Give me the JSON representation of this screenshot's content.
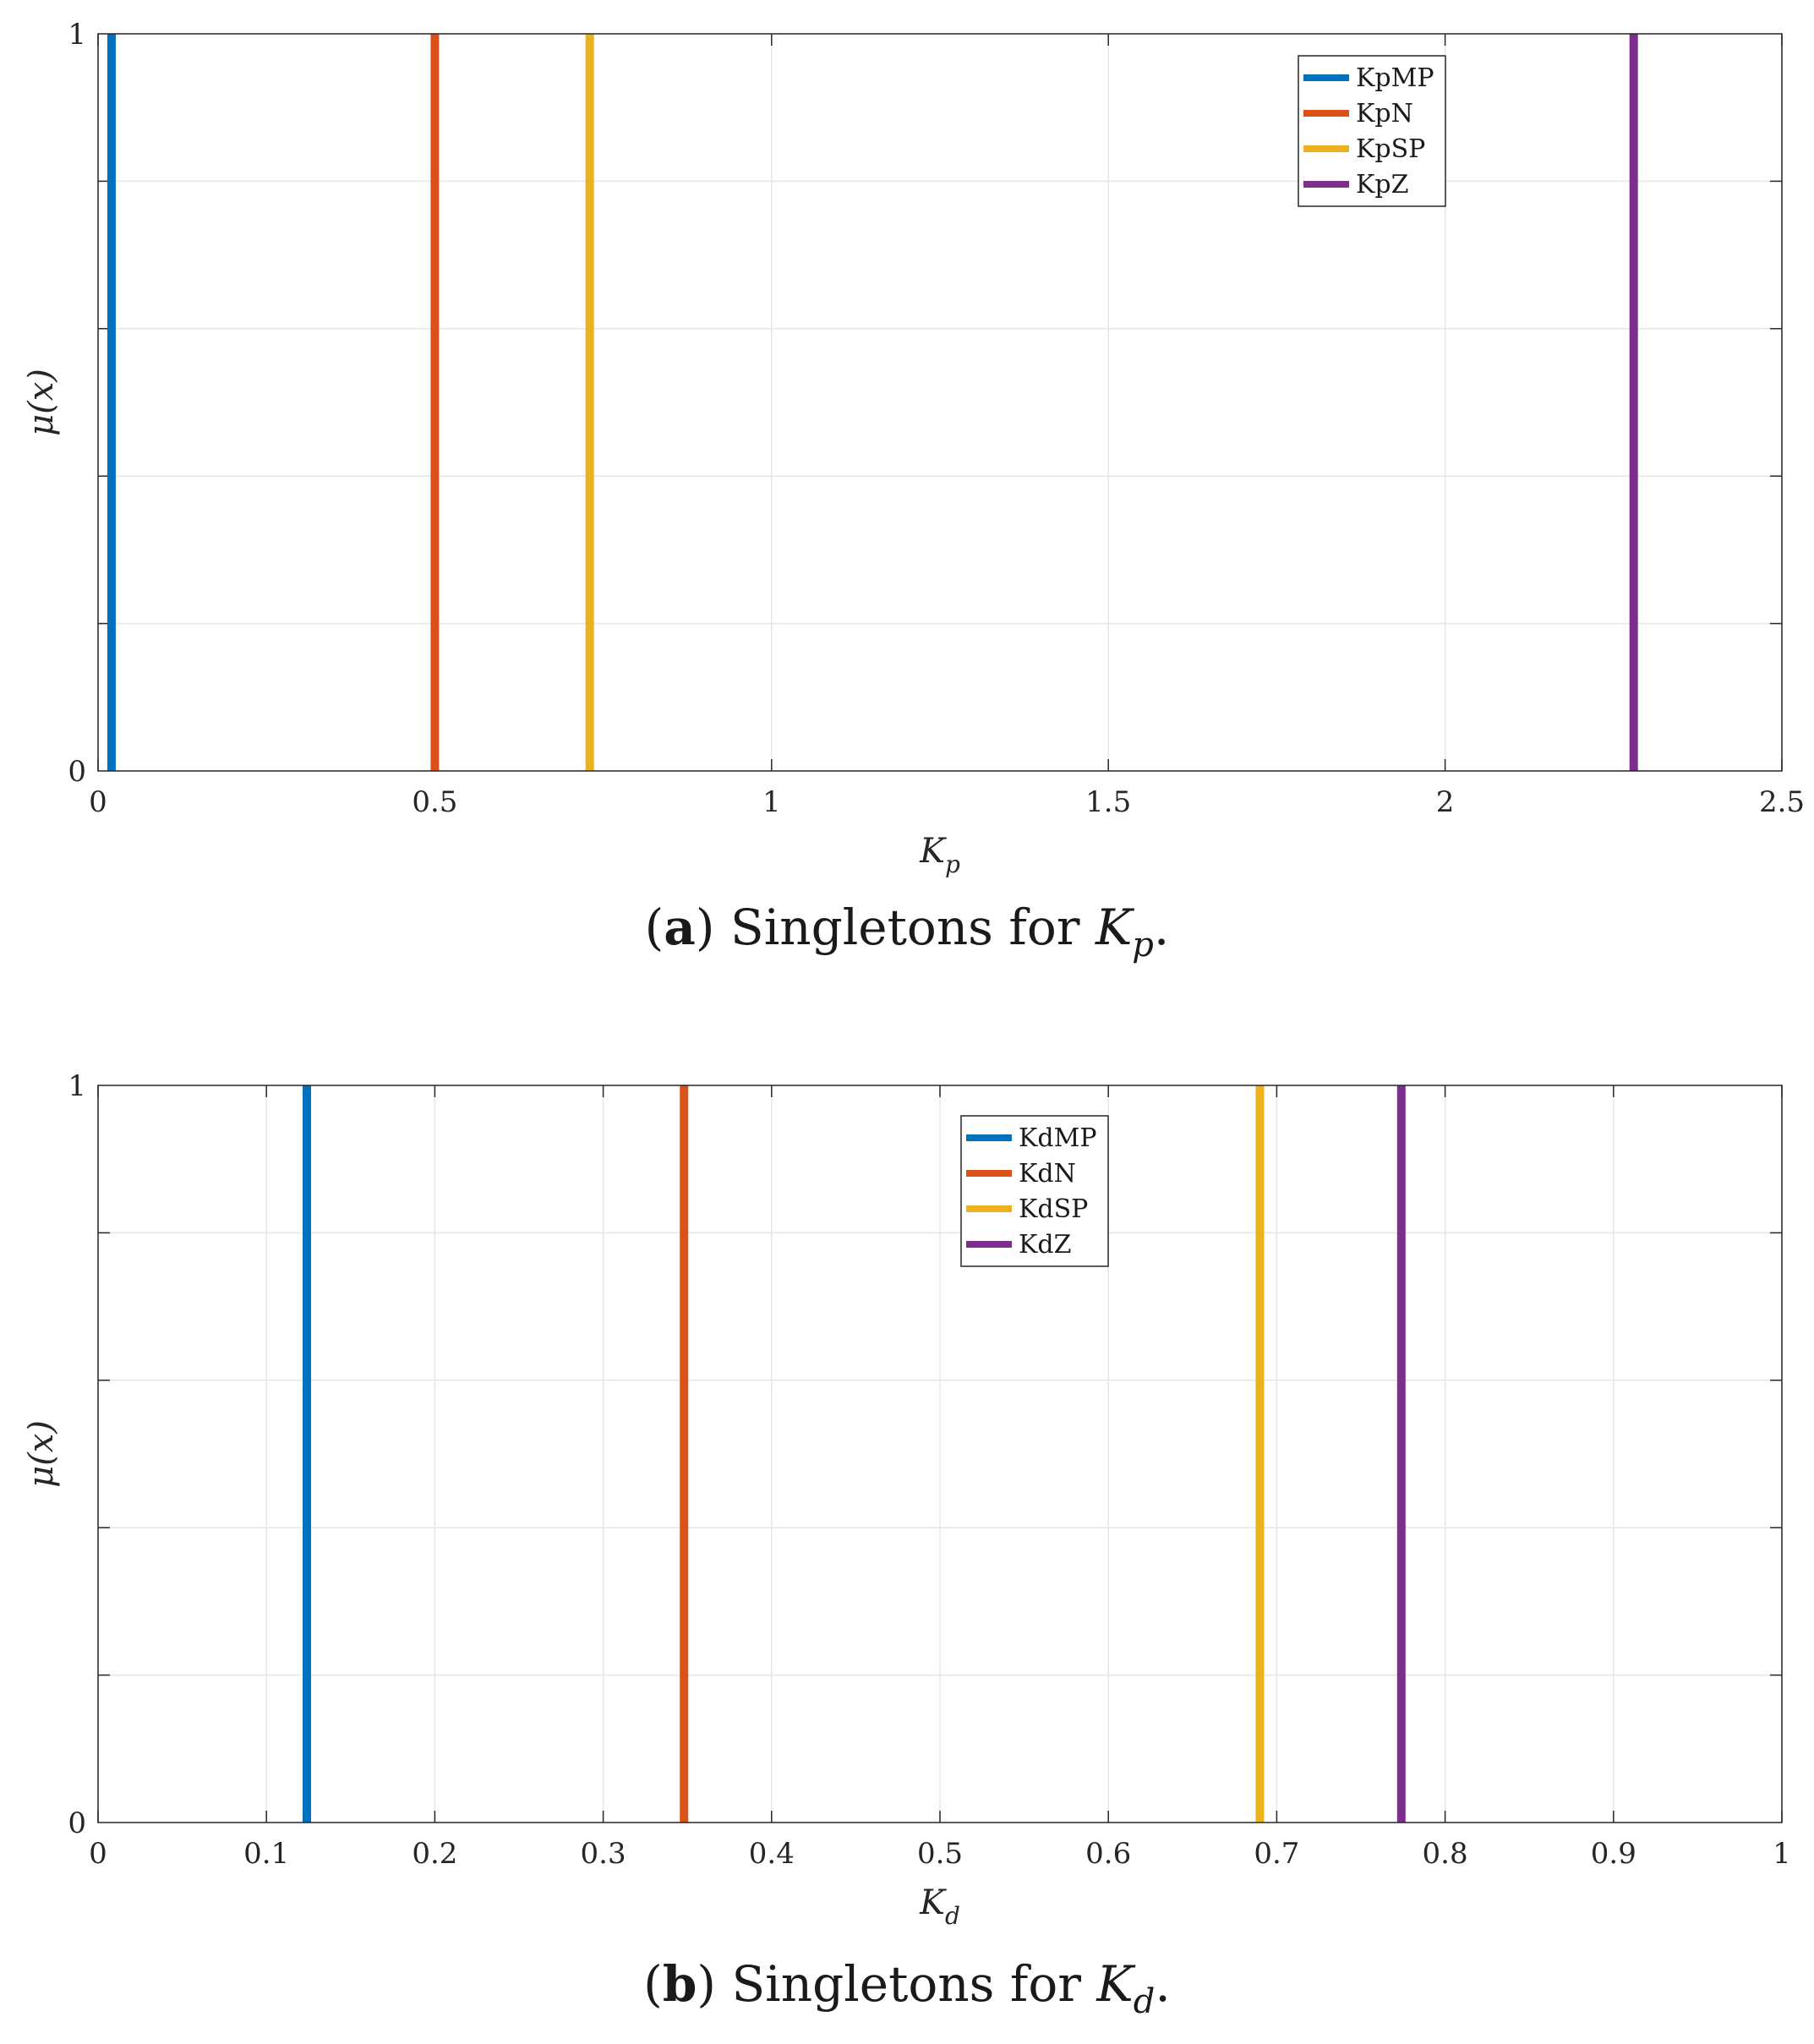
{
  "chart_data": [
    {
      "type": "line",
      "subtype": "singletons",
      "xlabel": "K",
      "xlabel_subscript": "p",
      "ylabel": "μ(x)",
      "xlim": [
        0,
        2.5
      ],
      "ylim": [
        0,
        1
      ],
      "xticks": [
        "0",
        "0.5",
        "1",
        "1.5",
        "2",
        "2.5"
      ],
      "xtick_values": [
        0,
        0.5,
        1,
        1.5,
        2,
        2.5
      ],
      "yticks": [
        "0",
        "1"
      ],
      "ytick_values": [
        0,
        1
      ],
      "grid": true,
      "legend_position": "top-right",
      "caption": {
        "letter": "a",
        "text": "Singletons for",
        "symbol": "K",
        "subscript": "p",
        "end": "."
      },
      "series": [
        {
          "name": "KpMP",
          "x": 0.02,
          "y": 1,
          "color": "#0072BD"
        },
        {
          "name": "KpN",
          "x": 0.5,
          "y": 1,
          "color": "#D95319"
        },
        {
          "name": "KpSP",
          "x": 0.73,
          "y": 1,
          "color": "#EDB120"
        },
        {
          "name": "KpZ",
          "x": 2.28,
          "y": 1,
          "color": "#7E2F8E"
        }
      ]
    },
    {
      "type": "line",
      "subtype": "singletons",
      "xlabel": "K",
      "xlabel_subscript": "d",
      "ylabel": "μ(x)",
      "xlim": [
        0,
        1
      ],
      "ylim": [
        0,
        1
      ],
      "xticks": [
        "0",
        "0.1",
        "0.2",
        "0.3",
        "0.4",
        "0.5",
        "0.6",
        "0.7",
        "0.8",
        "0.9",
        "1"
      ],
      "xtick_values": [
        0,
        0.1,
        0.2,
        0.3,
        0.4,
        0.5,
        0.6,
        0.7,
        0.8,
        0.9,
        1
      ],
      "yticks": [
        "0",
        "1"
      ],
      "ytick_values": [
        0,
        1
      ],
      "grid": true,
      "legend_position": "top-center",
      "caption": {
        "letter": "b",
        "text": "Singletons for",
        "symbol": "K",
        "subscript": "d",
        "end": "."
      },
      "series": [
        {
          "name": "KdMP",
          "x": 0.124,
          "y": 1,
          "color": "#0072BD"
        },
        {
          "name": "KdN",
          "x": 0.348,
          "y": 1,
          "color": "#D95319"
        },
        {
          "name": "KdSP",
          "x": 0.69,
          "y": 1,
          "color": "#EDB120"
        },
        {
          "name": "KdZ",
          "x": 0.774,
          "y": 1,
          "color": "#7E2F8E"
        }
      ]
    }
  ]
}
